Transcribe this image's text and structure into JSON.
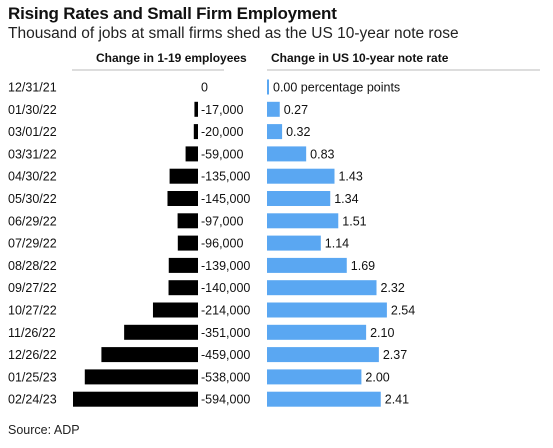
{
  "header": {
    "title": "Rising Rates and Small Firm Employment",
    "subtitle": "Thousand of jobs at small firms shed as the US 10-year note rose"
  },
  "footer": {
    "source": "Source: ADP"
  },
  "colors": {
    "black_bar": "#000000",
    "blue_bar": "#5aa7f2",
    "rule": "#bbbbbb"
  },
  "chart_data": {
    "type": "bar",
    "layout": "paired-horizontal",
    "categories": [
      "12/31/21",
      "01/30/22",
      "03/01/22",
      "03/31/22",
      "04/30/22",
      "05/30/22",
      "06/29/22",
      "07/29/22",
      "08/28/22",
      "09/27/22",
      "10/27/22",
      "11/26/22",
      "12/26/22",
      "01/25/23",
      "02/24/23"
    ],
    "series": [
      {
        "name": "Change in 1-19 employees",
        "values": [
          0,
          -17000,
          -20000,
          -59000,
          -135000,
          -145000,
          -97000,
          -96000,
          -139000,
          -140000,
          -214000,
          -351000,
          -459000,
          -538000,
          -594000
        ],
        "labels": [
          "0",
          "-17,000",
          "-20,000",
          "-59,000",
          "-135,000",
          "-145,000",
          "-97,000",
          "-96,000",
          "-139,000",
          "-140,000",
          "-214,000",
          "-351,000",
          "-459,000",
          "-538,000",
          "-594,000"
        ],
        "color": "#000000"
      },
      {
        "name": "Change in US 10-year note rate",
        "values": [
          0.0,
          0.27,
          0.32,
          0.83,
          1.43,
          1.34,
          1.51,
          1.14,
          1.69,
          2.32,
          2.54,
          2.1,
          2.37,
          2.0,
          2.41
        ],
        "labels": [
          "0.00 percentage points",
          "0.27",
          "0.32",
          "0.83",
          "1.43",
          "1.34",
          "1.51",
          "1.14",
          "1.69",
          "2.32",
          "2.54",
          "2.10",
          "2.37",
          "2.00",
          "2.41"
        ],
        "color": "#5aa7f2"
      }
    ],
    "legend": "column headers",
    "grid": false
  }
}
